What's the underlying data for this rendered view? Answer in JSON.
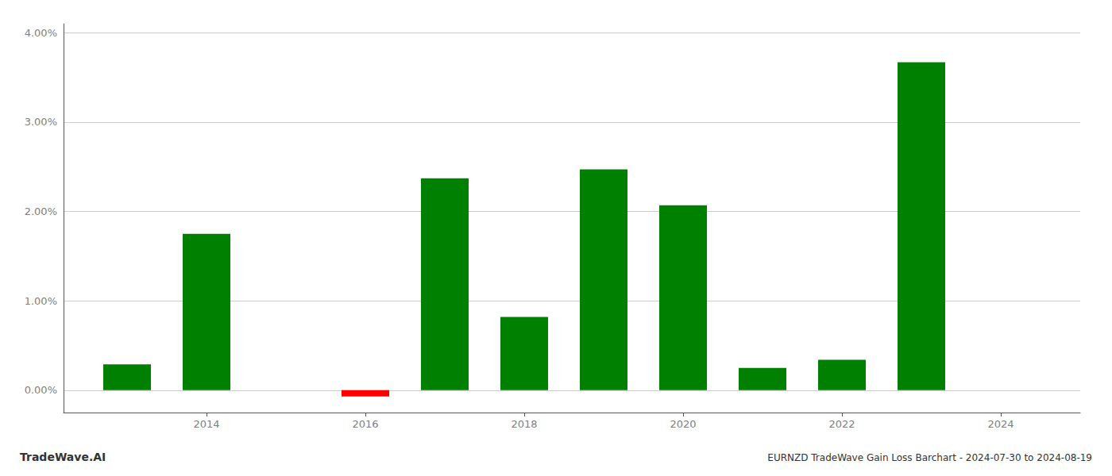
{
  "chart_data": {
    "type": "bar",
    "title": "EURNZD TradeWave Gain Loss Barchart - 2024-07-30 to 2024-08-19",
    "annotations": [
      "TradeWave.AI"
    ],
    "x": [
      2013,
      2014,
      2016,
      2017,
      2018,
      2019,
      2020,
      2021,
      2022,
      2023
    ],
    "values": [
      0.0029,
      0.0175,
      -0.0007,
      0.0237,
      0.0082,
      0.0247,
      0.0207,
      0.0025,
      0.0034,
      0.0367
    ],
    "colors": [
      "#008000",
      "#008000",
      "#ff0000",
      "#008000",
      "#008000",
      "#008000",
      "#008000",
      "#008000",
      "#008000",
      "#008000"
    ],
    "xlim": [
      2012.2,
      2025.0
    ],
    "xticks": [
      2014,
      2016,
      2018,
      2020,
      2022,
      2024
    ],
    "ylim": [
      -0.0025,
      0.041
    ],
    "yticks": [
      {
        "value": 0,
        "label": "0.00%"
      },
      {
        "value": 0.01,
        "label": "1.00%"
      },
      {
        "value": 0.02,
        "label": "2.00%"
      },
      {
        "value": 0.03,
        "label": "3.00%"
      },
      {
        "value": 0.04,
        "label": "4.00%"
      }
    ],
    "grid": "y"
  }
}
